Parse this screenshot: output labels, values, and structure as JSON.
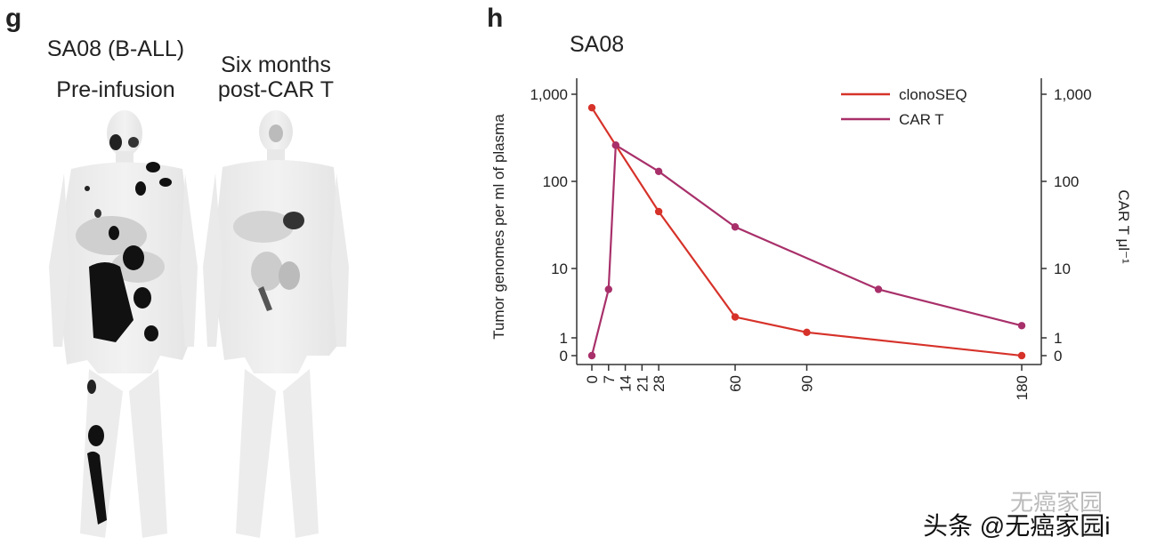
{
  "panel_g": {
    "letter": "g",
    "title": "SA08 (B-ALL)",
    "left_label": "Pre-infusion",
    "right_label_line1": "Six months",
    "right_label_line2": "post-CAR T"
  },
  "panel_h": {
    "letter": "h"
  },
  "watermark": {
    "text": "头条 @无癌家园i",
    "faint_text": "无癌家园"
  },
  "colors": {
    "clonoseq": "#d6322a",
    "car_t": "#a8306a",
    "axis": "#333333"
  },
  "chart_data": {
    "type": "line",
    "title": "SA08",
    "xlabel": "",
    "ylabel": "Tumor genomes per ml of plasma",
    "ylabel_right": "CAR T μl⁻¹",
    "x_ticks": [
      0,
      7,
      14,
      21,
      28,
      60,
      90,
      180
    ],
    "y_ticks": [
      "1,000",
      "100",
      "10",
      "1",
      "0"
    ],
    "y_right_ticks": [
      "1,000",
      "100",
      "10",
      "1",
      "0"
    ],
    "legend_position": "top-right",
    "series": [
      {
        "name": "clonoSEQ",
        "x": [
          0,
          10,
          28,
          60,
          90,
          180
        ],
        "y": [
          700,
          260,
          45,
          2,
          1.2,
          0
        ]
      },
      {
        "name": "CAR T",
        "x": [
          0,
          7,
          10,
          28,
          60,
          120,
          180
        ],
        "y": [
          0,
          5,
          260,
          130,
          30,
          5,
          1.5
        ]
      }
    ]
  }
}
